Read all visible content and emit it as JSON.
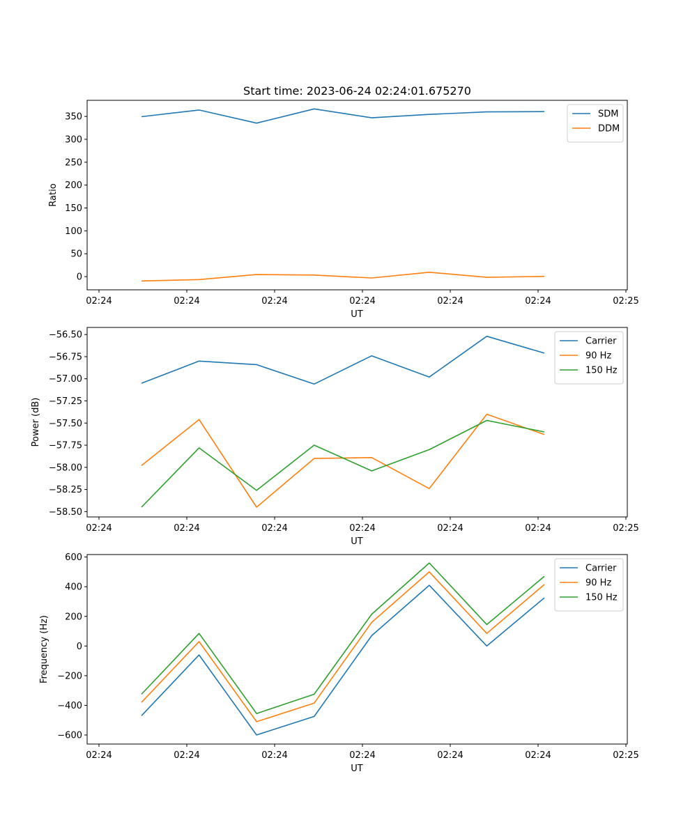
{
  "title": "Start time: 2023-06-24 02:24:01.675270",
  "colors": {
    "blue": "#1f77b4",
    "orange": "#ff7f0e",
    "green": "#2ca02c"
  },
  "x_tick_labels": [
    "02:24",
    "02:24",
    "02:24",
    "02:24",
    "02:24",
    "02:24",
    "02:24"
  ],
  "x_tick_labels_end": "02:25",
  "chart_data": [
    {
      "type": "line",
      "title": "Start time: 2023-06-24 02:24:01.675270",
      "xlabel": "UT",
      "ylabel": "Ratio",
      "ylim": [
        -28.8,
        385.2
      ],
      "yticks": [
        0,
        50,
        100,
        150,
        200,
        250,
        300,
        350
      ],
      "ytick_labels": [
        "0",
        "50",
        "100",
        "150",
        "200",
        "250",
        "300",
        "350"
      ],
      "xlim": [
        -0.75,
        8.5
      ],
      "x": [
        0,
        1,
        2,
        3,
        4,
        5,
        6,
        7
      ],
      "legend_position": "top-right",
      "series": [
        {
          "name": "SDM",
          "color": "#1f77b4",
          "values": [
            349.5,
            364,
            335.5,
            366.5,
            347,
            354.5,
            360,
            360.5
          ]
        },
        {
          "name": "DDM",
          "color": "#ff7f0e",
          "values": [
            -9.5,
            -6.5,
            4.5,
            3.5,
            -3,
            9.5,
            -1.5,
            0.5
          ]
        }
      ]
    },
    {
      "type": "line",
      "xlabel": "UT",
      "ylabel": "Power (dB)",
      "ylim": [
        -58.56,
        -56.42
      ],
      "yticks": [
        -58.5,
        -58.25,
        -58.0,
        -57.75,
        -57.5,
        -57.25,
        -57.0,
        -56.75,
        -56.5
      ],
      "ytick_labels": [
        "−58.50",
        "−58.25",
        "−58.00",
        "−57.75",
        "−57.50",
        "−57.25",
        "−57.00",
        "−56.75",
        "−56.50"
      ],
      "xlim": [
        -0.75,
        8.5
      ],
      "x": [
        0,
        1,
        2,
        3,
        4,
        5,
        6,
        7
      ],
      "legend_position": "top-right",
      "series": [
        {
          "name": "Carrier",
          "color": "#1f77b4",
          "values": [
            -57.05,
            -56.8,
            -56.84,
            -57.06,
            -56.74,
            -56.98,
            -56.52,
            -56.71
          ]
        },
        {
          "name": "90 Hz",
          "color": "#ff7f0e",
          "values": [
            -57.98,
            -57.46,
            -58.45,
            -57.9,
            -57.89,
            -58.24,
            -57.4,
            -57.63
          ]
        },
        {
          "name": "150 Hz",
          "color": "#2ca02c",
          "values": [
            -58.45,
            -57.78,
            -58.26,
            -57.75,
            -58.04,
            -57.8,
            -57.47,
            -57.6
          ]
        }
      ]
    },
    {
      "type": "line",
      "xlabel": "UT",
      "ylabel": "Frequency (Hz)",
      "ylim": [
        -661,
        617
      ],
      "yticks": [
        -600,
        -400,
        -200,
        0,
        200,
        400,
        600
      ],
      "ytick_labels": [
        "−600",
        "−400",
        "−200",
        "0",
        "200",
        "400",
        "600"
      ],
      "xlim": [
        -0.75,
        8.5
      ],
      "x": [
        0,
        1,
        2,
        3,
        4,
        5,
        6,
        7
      ],
      "legend_position": "top-right",
      "series": [
        {
          "name": "Carrier",
          "color": "#1f77b4",
          "values": [
            -470,
            -60,
            -600,
            -475,
            70,
            410,
            0,
            325
          ]
        },
        {
          "name": "90 Hz",
          "color": "#ff7f0e",
          "values": [
            -380,
            30,
            -510,
            -385,
            160,
            500,
            85,
            415
          ]
        },
        {
          "name": "150 Hz",
          "color": "#2ca02c",
          "values": [
            -325,
            85,
            -455,
            -325,
            215,
            560,
            145,
            470
          ]
        }
      ]
    }
  ]
}
